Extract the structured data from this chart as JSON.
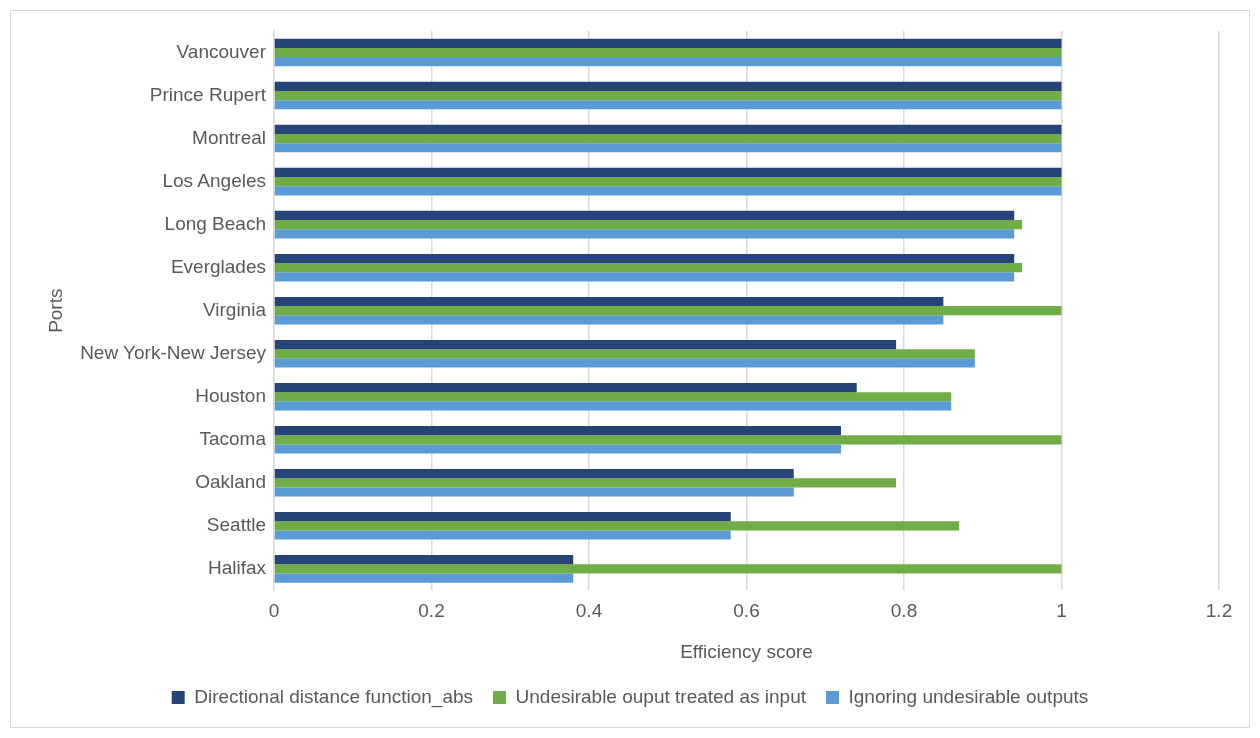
{
  "chart_data": {
    "type": "bar",
    "orientation": "horizontal",
    "xlabel": "Efficiency score",
    "ylabel": "Ports",
    "categories": [
      "Vancouver",
      "Prince Rupert",
      "Montreal",
      "Los Angeles",
      "Long Beach",
      "Everglades",
      "Virginia",
      "New York-New Jersey",
      "Houston",
      "Tacoma",
      "Oakland",
      "Seattle",
      "Halifax"
    ],
    "series": [
      {
        "name": "Directional distance function_abs",
        "color": "#264478",
        "values": [
          1,
          1,
          1,
          1,
          0.94,
          0.94,
          0.85,
          0.79,
          0.74,
          0.72,
          0.66,
          0.58,
          0.38
        ]
      },
      {
        "name": "Undesirable ouput treated as input",
        "color": "#70ad47",
        "values": [
          1,
          1,
          1,
          1,
          0.95,
          0.95,
          1,
          0.89,
          0.86,
          1,
          0.79,
          0.87,
          1
        ]
      },
      {
        "name": "Ignoring undesirable outputs",
        "color": "#5b9bd5",
        "values": [
          1,
          1,
          1,
          1,
          0.94,
          0.94,
          0.85,
          0.89,
          0.86,
          0.72,
          0.66,
          0.58,
          0.38
        ]
      }
    ],
    "xlim": [
      0,
      1.2
    ],
    "xticks": [
      0,
      0.2,
      0.4,
      0.6,
      0.8,
      1,
      1.2
    ],
    "grid": "x",
    "legend": "bottom"
  }
}
